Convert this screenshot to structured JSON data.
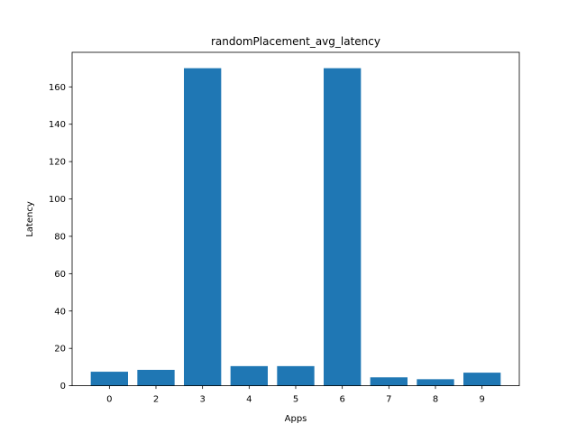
{
  "chart_data": {
    "type": "bar",
    "title": "randomPlacement_avg_latency",
    "xlabel": "Apps",
    "ylabel": "Latency",
    "categories": [
      "0",
      "2",
      "3",
      "4",
      "5",
      "6",
      "7",
      "8",
      "9"
    ],
    "values": [
      7.5,
      8.5,
      170,
      10.5,
      10.5,
      170,
      4.5,
      3.5,
      7
    ],
    "ylim": [
      0,
      178.5
    ],
    "yticks": [
      0,
      20,
      40,
      60,
      80,
      100,
      120,
      140,
      160
    ],
    "grid": false,
    "bar_color": "#1f77b4"
  }
}
